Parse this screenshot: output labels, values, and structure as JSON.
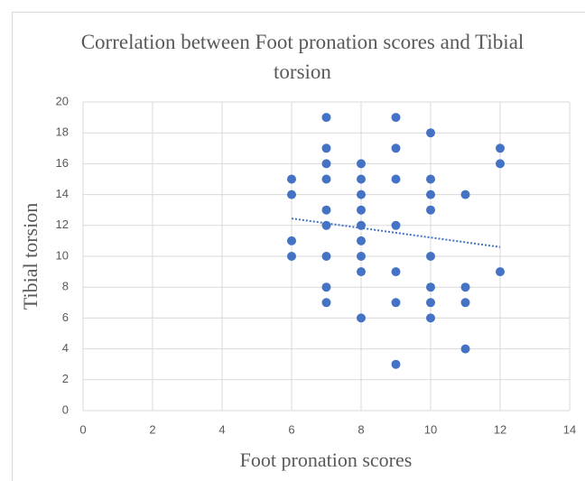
{
  "chart_data": {
    "type": "scatter",
    "title": "Correlation between Foot pronation scores and Tibial torsion",
    "x_label": "Foot pronation scores",
    "y_label": "Tibial torsion",
    "xlim": [
      0,
      14
    ],
    "xticks": [
      0,
      2,
      4,
      6,
      8,
      10,
      12,
      14
    ],
    "ylim": [
      0,
      20
    ],
    "yticks": [
      0,
      2,
      4,
      6,
      8,
      10,
      12,
      14,
      16,
      18,
      20
    ],
    "grid": true,
    "series": [
      {
        "color": "#4472c4",
        "x": [
          6,
          6,
          6,
          6,
          7,
          7,
          7,
          7,
          7,
          7,
          7,
          7,
          7,
          8,
          8,
          8,
          8,
          8,
          8,
          8,
          8,
          8,
          9,
          9,
          9,
          9,
          9,
          9,
          9,
          10,
          10,
          10,
          10,
          10,
          10,
          10,
          10,
          11,
          11,
          11,
          11,
          12,
          12,
          12
        ],
        "values": [
          15,
          14,
          11,
          10,
          19,
          17,
          16,
          15,
          13,
          12,
          10,
          8,
          7,
          16,
          15,
          14,
          13,
          12,
          11,
          10,
          9,
          6,
          19,
          17,
          15,
          12,
          9,
          7,
          3,
          18,
          15,
          14,
          13,
          10,
          8,
          7,
          6,
          14,
          8,
          7,
          4,
          17,
          16,
          9
        ]
      }
    ],
    "trendline": {
      "color": "#4472c4",
      "x": [
        6,
        12
      ],
      "values": [
        12.45,
        10.6
      ]
    }
  }
}
